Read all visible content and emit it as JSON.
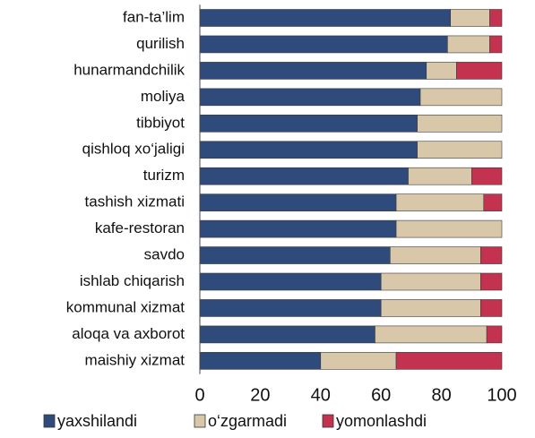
{
  "chart_data": {
    "type": "stacked_bar",
    "orientation": "horizontal",
    "categories": [
      "fan-ta’lim",
      "qurilish",
      "hunarmandchilik",
      "moliya",
      "tibbiyot",
      "qishloq xo‘jaligi",
      "turizm",
      "tashish xizmati",
      "kafe-restoran",
      "savdo",
      "ishlab chiqarish",
      "kommunal xizmat",
      "aloqa va axborot",
      "maishiy xizmat"
    ],
    "series": [
      {
        "name": "yaxshilandi",
        "color": "#2f4b7c",
        "values": [
          83,
          82,
          75,
          73,
          72,
          72,
          69,
          65,
          65,
          63,
          60,
          60,
          58,
          40
        ]
      },
      {
        "name": "o‘zgarmadi",
        "color": "#d9c7aa",
        "values": [
          13,
          14,
          10,
          27,
          28,
          28,
          21,
          29,
          35,
          30,
          33,
          33,
          37,
          25
        ]
      },
      {
        "name": "yomonlashdi",
        "color": "#c3324f",
        "values": [
          4,
          4,
          15,
          0,
          0,
          0,
          10,
          6,
          0,
          7,
          7,
          7,
          5,
          35
        ]
      }
    ],
    "xlim": [
      0,
      100
    ],
    "xticks": [
      0,
      20,
      40,
      60,
      80,
      100
    ],
    "legend": "bottom"
  }
}
